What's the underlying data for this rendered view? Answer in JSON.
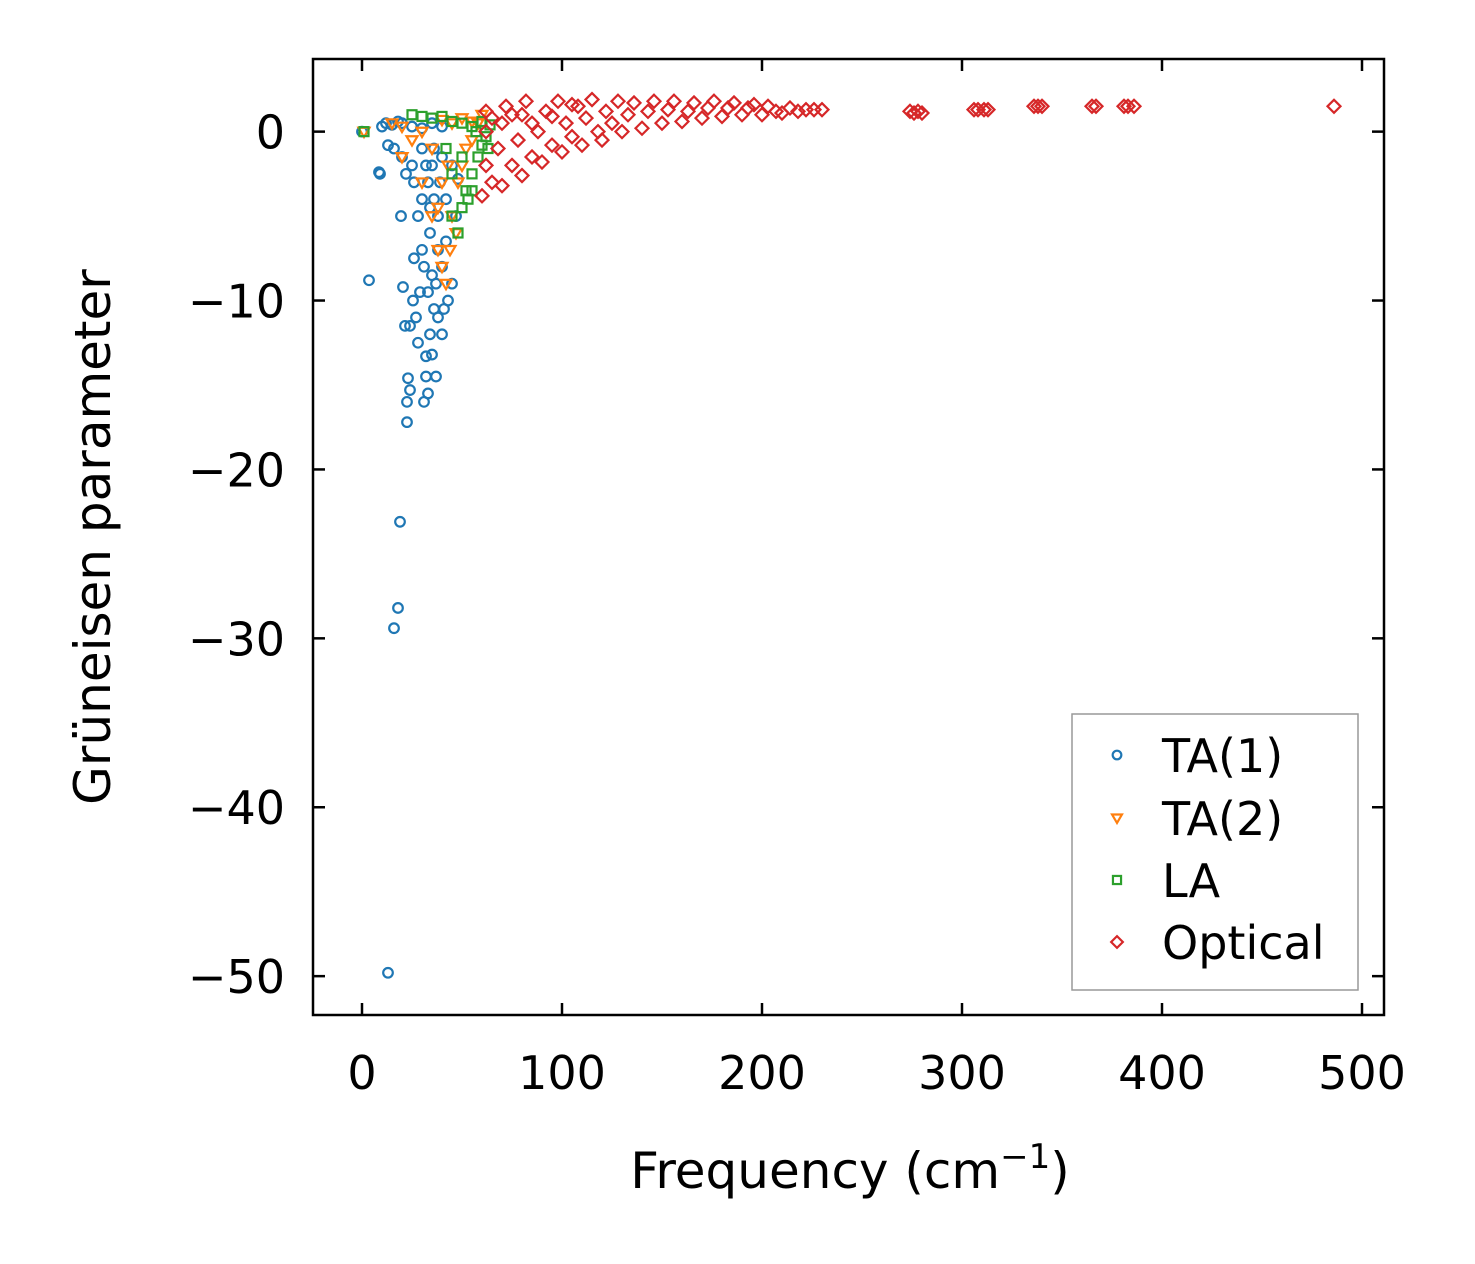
{
  "chart_data": {
    "type": "scatter",
    "title": "",
    "xlabel": "Frequency (cm",
    "xlabel_sup": "−1",
    "xlabel_close": ")",
    "ylabel": "Grüneisen parameter",
    "xlim": [
      -24.5,
      511
    ],
    "ylim": [
      -52.3,
      4.3
    ],
    "xticks": [
      0,
      100,
      200,
      300,
      400,
      500
    ],
    "xtick_labels": [
      "0",
      "100",
      "200",
      "300",
      "400",
      "500"
    ],
    "yticks": [
      0,
      -10,
      -20,
      -30,
      -40,
      -50
    ],
    "ytick_labels": [
      "0",
      "−10",
      "−20",
      "−30",
      "−40",
      "−50"
    ],
    "grid": false,
    "legend_position": "lower-right",
    "series": [
      {
        "name": "TA(1)",
        "marker": "circle",
        "color": "#1f77b4",
        "points": [
          [
            0,
            0
          ],
          [
            10,
            0.3
          ],
          [
            12,
            0.5
          ],
          [
            15,
            0.4
          ],
          [
            18,
            0.6
          ],
          [
            20,
            0.5
          ],
          [
            25,
            0.3
          ],
          [
            30,
            0.2
          ],
          [
            35,
            0.5
          ],
          [
            40,
            0.3
          ],
          [
            13,
            -0.8
          ],
          [
            16,
            -1
          ],
          [
            20,
            -1.5
          ],
          [
            25,
            -2
          ],
          [
            9,
            -2.5
          ],
          [
            8.5,
            -2.4
          ],
          [
            30,
            -1
          ],
          [
            35,
            -2
          ],
          [
            40,
            -1.5
          ],
          [
            45,
            -2
          ],
          [
            48,
            -2.8
          ],
          [
            33,
            -3
          ],
          [
            36,
            -4
          ],
          [
            38,
            -5
          ],
          [
            42,
            -4
          ],
          [
            34,
            -6
          ],
          [
            38,
            -7
          ],
          [
            40,
            -8
          ],
          [
            35,
            -8.5
          ],
          [
            33,
            -9.5
          ],
          [
            36,
            -10.5
          ],
          [
            38,
            -11
          ],
          [
            34,
            -12
          ],
          [
            32,
            -13.3
          ],
          [
            35,
            -13.2
          ],
          [
            32,
            -14.5
          ],
          [
            33,
            -15.5
          ],
          [
            31,
            -16
          ],
          [
            28,
            -12.5
          ],
          [
            27,
            -11
          ],
          [
            29,
            -9.5
          ],
          [
            30,
            -7
          ],
          [
            28,
            -5
          ],
          [
            26,
            -3
          ],
          [
            22,
            -2.5
          ],
          [
            19.5,
            -5
          ],
          [
            20.5,
            -9.2
          ],
          [
            21.5,
            -11.5
          ],
          [
            25.5,
            -10
          ],
          [
            22.5,
            -16
          ],
          [
            24,
            -15.3
          ],
          [
            23,
            -14.6
          ],
          [
            22.5,
            -17.2
          ],
          [
            19,
            -23.1
          ],
          [
            18,
            -28.2
          ],
          [
            16,
            -29.4
          ],
          [
            13,
            -49.8
          ],
          [
            3.5,
            -8.8
          ],
          [
            45,
            -9
          ],
          [
            43,
            -10
          ],
          [
            47,
            -5
          ],
          [
            42,
            -6.5
          ],
          [
            40,
            -12
          ],
          [
            37,
            -14.5
          ],
          [
            30,
            -4
          ],
          [
            26,
            -7.5
          ],
          [
            24,
            -11.5
          ],
          [
            32,
            -2
          ],
          [
            36,
            -1
          ],
          [
            31,
            -8
          ],
          [
            37,
            -9
          ],
          [
            41,
            -10.5
          ],
          [
            34,
            -4.5
          ],
          [
            39,
            -3
          ]
        ]
      },
      {
        "name": "TA(2)",
        "marker": "triangle-down",
        "color": "#ff7f0e",
        "points": [
          [
            1,
            0
          ],
          [
            15,
            0.5
          ],
          [
            20,
            0.3
          ],
          [
            25,
            -0.5
          ],
          [
            20,
            -1.5
          ],
          [
            30,
            -3
          ],
          [
            35,
            -5
          ],
          [
            38,
            -7
          ],
          [
            40,
            -8
          ],
          [
            42,
            -9
          ],
          [
            44,
            -7
          ],
          [
            45,
            -5
          ],
          [
            48,
            -3
          ],
          [
            50,
            -2
          ],
          [
            55,
            -0.5
          ],
          [
            58,
            0.5
          ],
          [
            60,
            1
          ],
          [
            40,
            -3
          ],
          [
            35,
            -1
          ],
          [
            30,
            0
          ],
          [
            45,
            0.5
          ],
          [
            50,
            0.8
          ],
          [
            38,
            -4.5
          ],
          [
            47,
            -6
          ],
          [
            52,
            -1
          ],
          [
            43,
            -2
          ],
          [
            40,
            0.7
          ],
          [
            55,
            0.6
          ]
        ]
      },
      {
        "name": "LA",
        "marker": "square",
        "color": "#2ca02c",
        "points": [
          [
            1,
            0
          ],
          [
            25,
            1
          ],
          [
            30,
            0.9
          ],
          [
            35,
            0.8
          ],
          [
            40,
            0.9
          ],
          [
            45,
            0.6
          ],
          [
            50,
            0.5
          ],
          [
            55,
            0.3
          ],
          [
            60,
            0.6
          ],
          [
            64,
            0.4
          ],
          [
            48,
            -6
          ],
          [
            50,
            -4.5
          ],
          [
            52,
            -3.5
          ],
          [
            55,
            -2.5
          ],
          [
            58,
            -1.5
          ],
          [
            60,
            -0.8
          ],
          [
            62,
            -0.3
          ],
          [
            45,
            -5
          ],
          [
            53,
            -4
          ],
          [
            57,
            0
          ],
          [
            50,
            -1.5
          ],
          [
            45,
            -2.5
          ],
          [
            42,
            -1
          ],
          [
            63,
            -1
          ],
          [
            55,
            -3.5
          ]
        ]
      },
      {
        "name": "Optical",
        "marker": "diamond",
        "color": "#d62728",
        "points": [
          [
            60,
            -3.8
          ],
          [
            62,
            -2
          ],
          [
            62,
            0
          ],
          [
            62,
            1.2
          ],
          [
            65,
            -3
          ],
          [
            65,
            0.8
          ],
          [
            68,
            -1
          ],
          [
            70,
            -3.2
          ],
          [
            70,
            0.5
          ],
          [
            72,
            1.5
          ],
          [
            75,
            -2
          ],
          [
            75,
            1
          ],
          [
            78,
            -0.5
          ],
          [
            80,
            -2.6
          ],
          [
            80,
            1
          ],
          [
            82,
            1.8
          ],
          [
            85,
            -1.5
          ],
          [
            85,
            0.5
          ],
          [
            88,
            0
          ],
          [
            90,
            -1.8
          ],
          [
            92,
            1.2
          ],
          [
            95,
            -0.8
          ],
          [
            95,
            0.9
          ],
          [
            98,
            1.8
          ],
          [
            100,
            -1.2
          ],
          [
            102,
            0.5
          ],
          [
            105,
            -0.3
          ],
          [
            105,
            1.6
          ],
          [
            108,
            1.5
          ],
          [
            110,
            -0.8
          ],
          [
            112,
            0.8
          ],
          [
            115,
            1.9
          ],
          [
            118,
            0
          ],
          [
            120,
            -0.5
          ],
          [
            122,
            1.2
          ],
          [
            125,
            0.5
          ],
          [
            128,
            1.8
          ],
          [
            130,
            0
          ],
          [
            133,
            1
          ],
          [
            136,
            1.7
          ],
          [
            140,
            0.2
          ],
          [
            143,
            1.2
          ],
          [
            146,
            1.8
          ],
          [
            150,
            0.5
          ],
          [
            153,
            1.3
          ],
          [
            156,
            1.8
          ],
          [
            160,
            0.6
          ],
          [
            163,
            1.2
          ],
          [
            166,
            1.7
          ],
          [
            170,
            0.8
          ],
          [
            173,
            1.4
          ],
          [
            176,
            1.8
          ],
          [
            180,
            0.9
          ],
          [
            183,
            1.4
          ],
          [
            186,
            1.7
          ],
          [
            190,
            1.0
          ],
          [
            193,
            1.4
          ],
          [
            196,
            1.6
          ],
          [
            200,
            1.0
          ],
          [
            203,
            1.5
          ],
          [
            207,
            1.2
          ],
          [
            210,
            1.1
          ],
          [
            214,
            1.4
          ],
          [
            218,
            1.2
          ],
          [
            222,
            1.3
          ],
          [
            226,
            1.3
          ],
          [
            230,
            1.3
          ],
          [
            274,
            1.2
          ],
          [
            276,
            1.1
          ],
          [
            278,
            1.2
          ],
          [
            280,
            1.1
          ],
          [
            306,
            1.3
          ],
          [
            308,
            1.3
          ],
          [
            311,
            1.3
          ],
          [
            313,
            1.3
          ],
          [
            336,
            1.5
          ],
          [
            338,
            1.5
          ],
          [
            340,
            1.5
          ],
          [
            365,
            1.5
          ],
          [
            367,
            1.5
          ],
          [
            381,
            1.5
          ],
          [
            383,
            1.5
          ],
          [
            386,
            1.5
          ],
          [
            486,
            1.5
          ]
        ]
      }
    ]
  }
}
